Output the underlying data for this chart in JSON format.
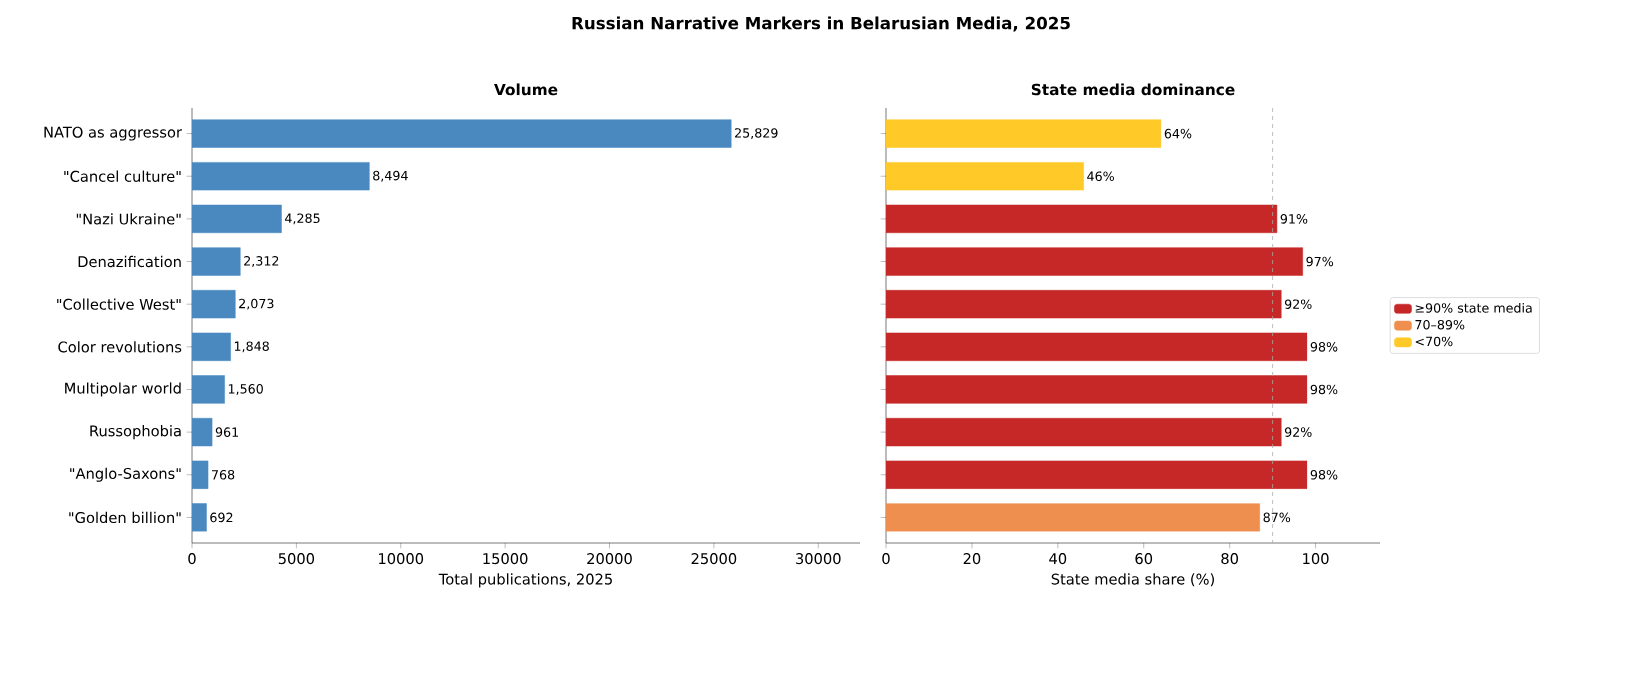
{
  "chart_data": [
    {
      "type": "bar",
      "orientation": "horizontal",
      "title": "Russian Narrative Markers in Belarusian Media, 2025",
      "subtitle": "Volume",
      "xlabel": "Total publications, 2025",
      "categories": [
        "NATO as aggressor",
        "\"Cancel culture\"",
        "\"Nazi Ukraine\"",
        "Denazification",
        "\"Collective West\"",
        "Color revolutions",
        "Multipolar world",
        "Russophobia",
        "\"Anglo-Saxons\"",
        "\"Golden billion\""
      ],
      "series": [
        {
          "color": "#4a89c0",
          "values": [
            25829,
            8494,
            4285,
            2312,
            2073,
            1848,
            1560,
            961,
            768,
            692
          ],
          "value_labels": [
            "25,829",
            "8,494",
            "4,285",
            "2,312",
            "2,073",
            "1,848",
            "1,560",
            "961",
            "768",
            "692"
          ]
        }
      ],
      "xlim": [
        0,
        32000
      ],
      "xticks": [
        0,
        5000,
        10000,
        15000,
        20000,
        25000,
        30000
      ],
      "grid": false,
      "legend": false
    },
    {
      "type": "bar",
      "orientation": "horizontal",
      "subtitle": "State media dominance",
      "xlabel": "State media share (%)",
      "categories": [
        null,
        null,
        null,
        null,
        null,
        null,
        null,
        null,
        null,
        null
      ],
      "series": [
        {
          "name": "≥90% state media",
          "color": "#c62828",
          "values": [
            null,
            null,
            91,
            97,
            92,
            98,
            98,
            92,
            98,
            null
          ],
          "value_labels": [
            null,
            null,
            "91%",
            "97%",
            "92%",
            "98%",
            "98%",
            "92%",
            "98%",
            null
          ]
        },
        {
          "name": "70–89%",
          "color": "#ee8f50",
          "values": [
            null,
            null,
            null,
            null,
            null,
            null,
            null,
            null,
            null,
            87
          ],
          "value_labels": [
            null,
            null,
            null,
            null,
            null,
            null,
            null,
            null,
            null,
            "87%"
          ]
        },
        {
          "name": "<70%",
          "color": "#ffca28",
          "values": [
            64,
            46,
            null,
            null,
            null,
            null,
            null,
            null,
            null,
            null
          ],
          "value_labels": [
            "64%",
            "46%",
            null,
            null,
            null,
            null,
            null,
            null,
            null,
            null
          ]
        }
      ],
      "xlim": [
        0,
        115
      ],
      "xticks": [
        0,
        20,
        40,
        60,
        80,
        100
      ],
      "tick_labels": "x",
      "ref_lines": [
        {
          "axis": "x",
          "value": 90,
          "color": "#aaaaaa",
          "line_style": "dashed"
        }
      ],
      "grid": false,
      "legend": "right"
    }
  ]
}
